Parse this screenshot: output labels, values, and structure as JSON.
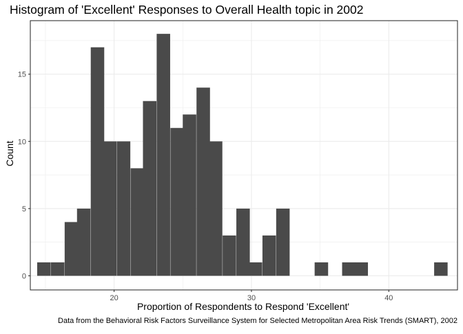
{
  "chart_data": {
    "type": "bar",
    "subtype": "histogram",
    "title": "Histogram of 'Excellent' Responses to Overall Health topic in 2002",
    "xlabel": "Proportion of Respondents to Respond 'Excellent'",
    "ylabel": "Count",
    "caption": "Data from the Behavioral Risk Factors Surveillance System for Selected Metropolitan Area Risk Trends (SMART), 2002",
    "xlim": [
      13.9,
      45.0
    ],
    "ylim": [
      0,
      18
    ],
    "x_ticks": [
      20,
      30,
      40
    ],
    "y_ticks": [
      0,
      5,
      10,
      15
    ],
    "x_tick_labels": [
      "20",
      "30",
      "40"
    ],
    "y_tick_labels": [
      "0",
      "5",
      "10",
      "15"
    ],
    "grid": true,
    "bin_width": 0.966,
    "bin_starts": [
      14.4,
      15.4,
      16.4,
      17.3,
      18.3,
      19.2,
      20.2,
      21.2,
      22.1,
      23.1,
      24.1,
      25.0,
      26.0,
      26.9,
      27.9,
      28.9,
      29.8,
      30.8,
      31.8,
      32.7,
      33.7,
      34.6,
      35.6,
      36.6,
      37.5,
      38.5,
      39.5,
      40.4,
      41.4,
      42.3,
      43.3
    ],
    "values": [
      1,
      1,
      4,
      5,
      17,
      10,
      10,
      8,
      13,
      18,
      11,
      12,
      14,
      10,
      3,
      5,
      1,
      3,
      5,
      0,
      0,
      1,
      0,
      1,
      1,
      0,
      0,
      0,
      0,
      0,
      1
    ],
    "bar_color": "#4a4a4a",
    "panel_border_color": "#333333",
    "grid_color": "#ebebeb"
  }
}
